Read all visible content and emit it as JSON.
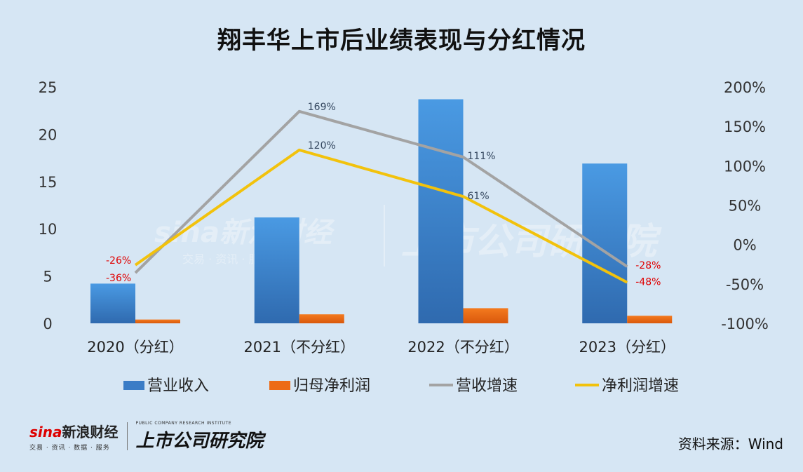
{
  "title": "翔丰华上市后业绩表现与分红情况",
  "chart_data": {
    "type": "bar+line",
    "categories": [
      "2020（分红）",
      "2021（不分红）",
      "2022（不分红）",
      "2023（分红）"
    ],
    "left_axis": {
      "ylim": [
        0,
        25
      ],
      "ticks": [
        "0",
        "5",
        "10",
        "15",
        "20",
        "25"
      ]
    },
    "right_axis": {
      "ylim": [
        -100,
        200
      ],
      "ticks": [
        "-100%",
        "-50%",
        "0%",
        "50%",
        "100%",
        "150%",
        "200%"
      ]
    },
    "series": [
      {
        "name": "营业收入",
        "type": "bar",
        "axis": "left",
        "color": "#3a7cc6",
        "values": [
          4.2,
          11.2,
          23.7,
          16.9
        ]
      },
      {
        "name": "归母净利润",
        "type": "bar",
        "axis": "left",
        "color": "#ed6b16",
        "values": [
          0.4,
          0.95,
          1.6,
          0.8
        ]
      },
      {
        "name": "营收增速",
        "type": "line",
        "axis": "right",
        "color": "#a3a3a3",
        "values": [
          -36,
          169,
          111,
          -28
        ],
        "labels": [
          "-36%",
          "169%",
          "111%",
          "-28%"
        ]
      },
      {
        "name": "净利润增速",
        "type": "line",
        "axis": "right",
        "color": "#f2c20c",
        "values": [
          -26,
          120,
          61,
          -48
        ],
        "labels": [
          "-26%",
          "120%",
          "61%",
          "-48%"
        ]
      }
    ]
  },
  "watermark": {
    "brand": "sina新浪财经",
    "sub": "交易 · 资讯 · 服务",
    "inst": "上市公司研究院"
  },
  "footer": {
    "sina_s": "sina",
    "sina_text": "新浪财经",
    "sina_sub": "交易 · 资讯 · 数据 · 服务",
    "inst_sub": "PUBLIC COMPANY RESEARCH INSTITUTE",
    "inst_main": "上市公司研究院",
    "source": "资料来源：Wind"
  }
}
